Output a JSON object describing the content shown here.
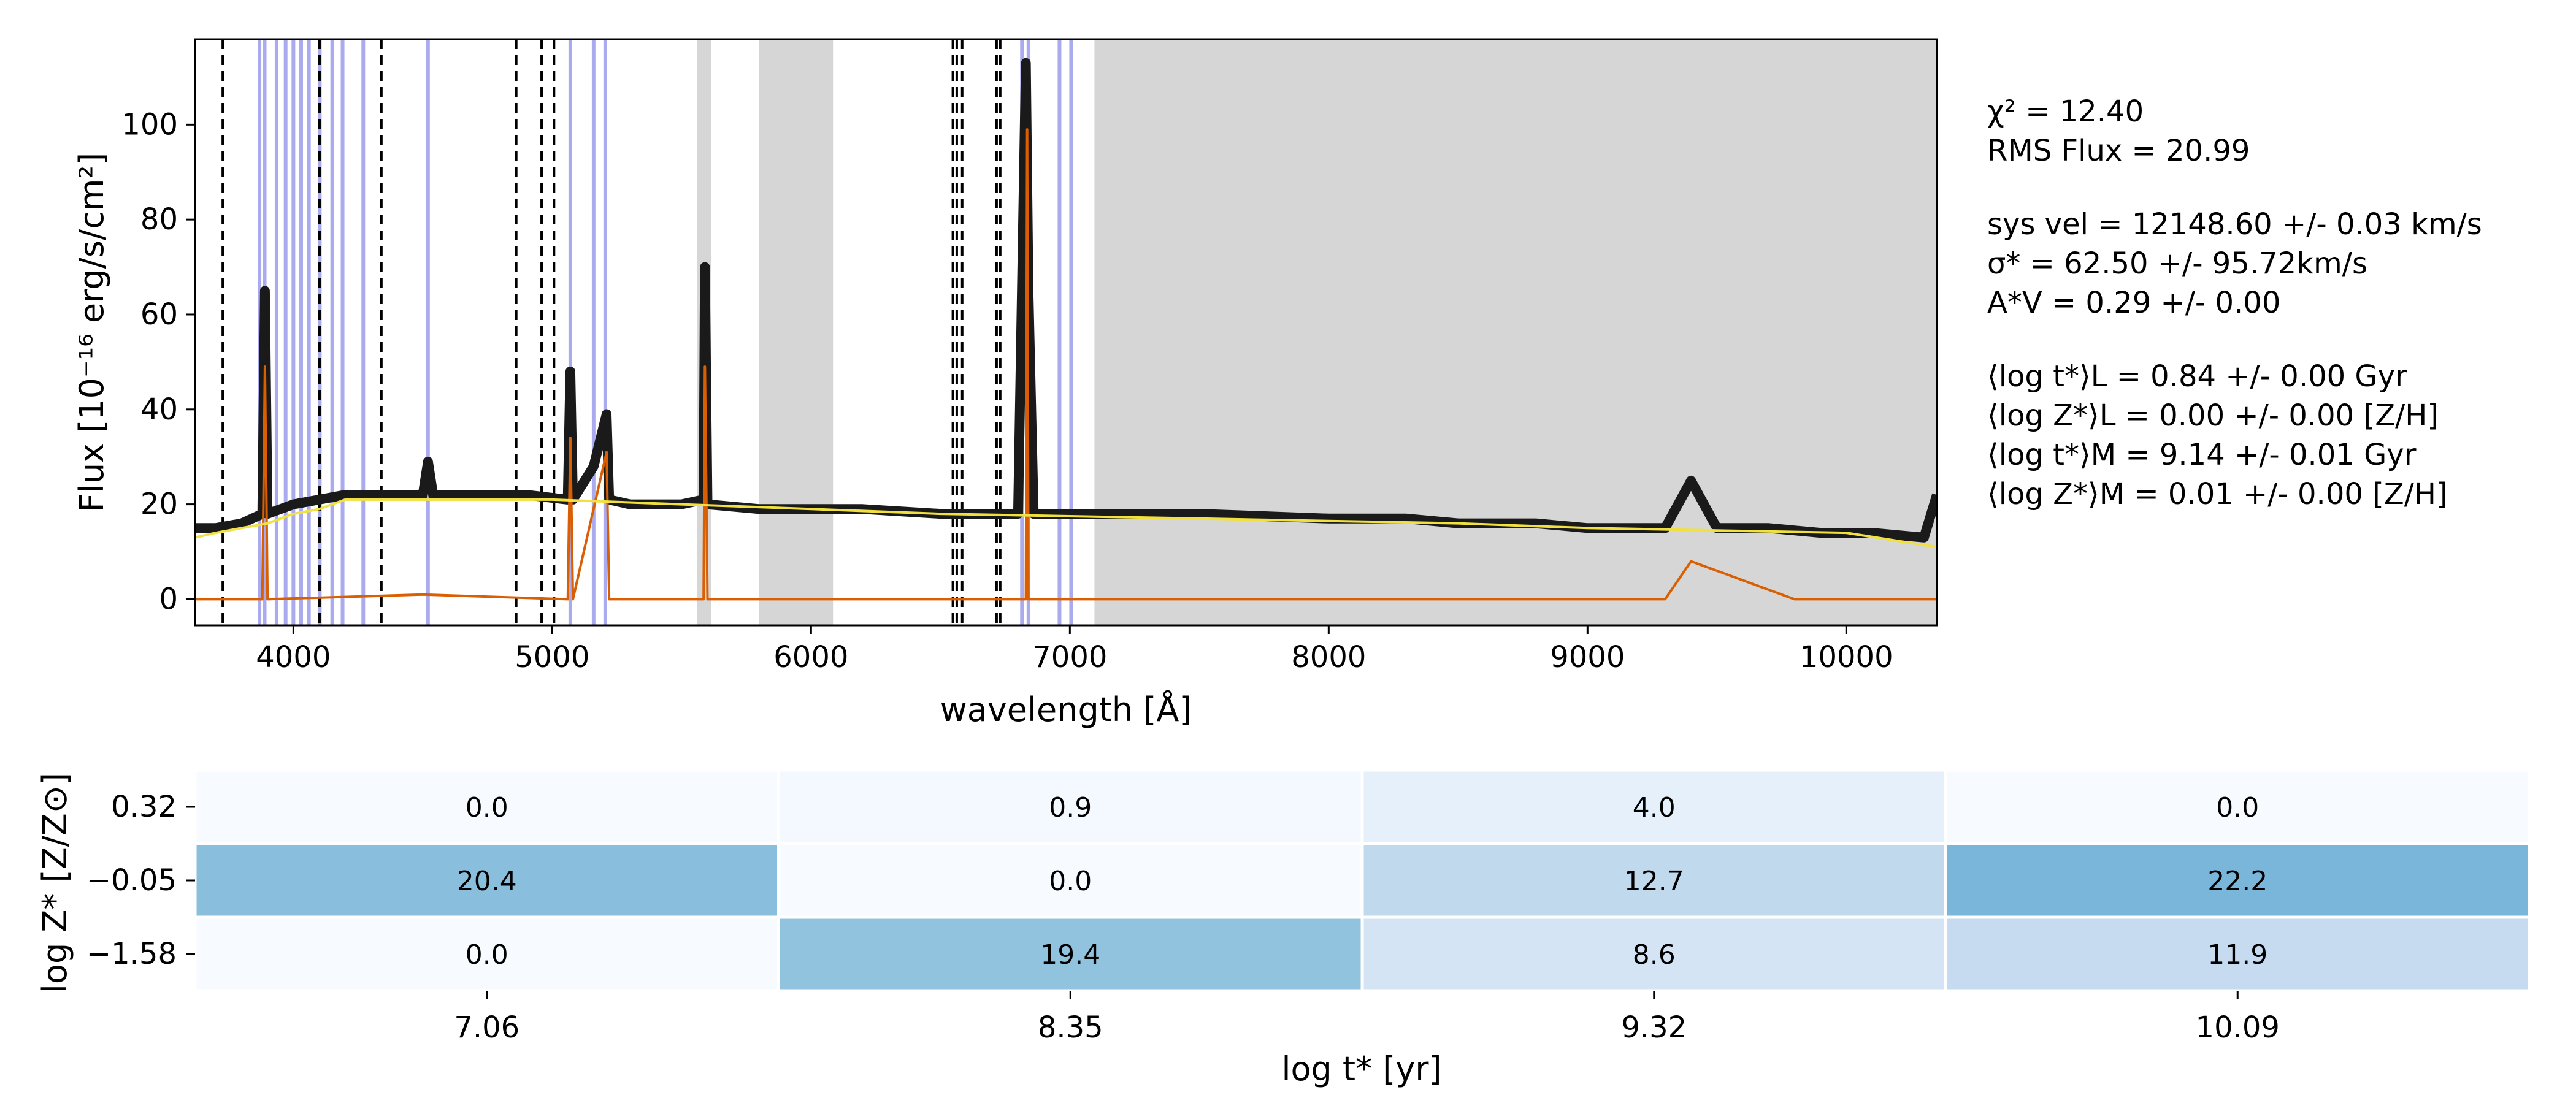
{
  "chart_data": [
    {
      "type": "line",
      "xlabel": "wavelength [Å]",
      "ylabel": "Flux [10⁻¹⁶ erg/s/cm²]",
      "xlim": [
        3620,
        10350
      ],
      "ylim": [
        -5.5,
        118
      ],
      "xticks": [
        4000,
        5000,
        6000,
        7000,
        8000,
        9000,
        10000
      ],
      "yticks": [
        0,
        20,
        40,
        60,
        80,
        100
      ],
      "grid": false,
      "legend": "none",
      "colors": {
        "observed": "#1a1a1a",
        "model": "#f0e040",
        "residual": "#d95f02",
        "masked": "#d6d6d6",
        "emission_lines": "#aaaaee",
        "dashed_lines": "#000000"
      },
      "masked_regions": [
        [
          5560,
          5615
        ],
        [
          5800,
          6085
        ],
        [
          7095,
          10350
        ]
      ],
      "emission_lines_blue": [
        3869,
        3889,
        3935,
        3970,
        4000,
        4030,
        4060,
        4102,
        4150,
        4190,
        4270,
        4520,
        5070,
        5160,
        5205,
        6815,
        6840,
        6960,
        7005
      ],
      "absorption_lines_dashed": [
        3727,
        4101,
        4340,
        4861,
        4959,
        5007,
        6548,
        6563,
        6584,
        6717,
        6731
      ],
      "series": [
        {
          "name": "observed",
          "x": [
            3620,
            3700,
            3800,
            3880,
            3890,
            3900,
            4000,
            4100,
            4200,
            4300,
            4400,
            4500,
            4520,
            4540,
            4700,
            4900,
            5060,
            5070,
            5080,
            5160,
            5210,
            5220,
            5300,
            5500,
            5585,
            5590,
            5600,
            5800,
            6000,
            6200,
            6500,
            6800,
            6830,
            6840,
            6860,
            7000,
            7500,
            8000,
            8300,
            8500,
            8800,
            9000,
            9300,
            9400,
            9500,
            9700,
            9900,
            10100,
            10300,
            10350
          ],
          "y": [
            15,
            15,
            16,
            18,
            65,
            18,
            20,
            21,
            22,
            22,
            22,
            22,
            29,
            22,
            22,
            22,
            21,
            48,
            21,
            28,
            39,
            21,
            20,
            20,
            21,
            70,
            20,
            19,
            19,
            19,
            18,
            18,
            113,
            65,
            18,
            18,
            18,
            17,
            17,
            16,
            16,
            15,
            15,
            25,
            15,
            15,
            14,
            14,
            13,
            22
          ]
        },
        {
          "name": "model",
          "x": [
            3620,
            3700,
            3800,
            3900,
            4000,
            4100,
            4200,
            4300,
            4500,
            4800,
            5000,
            5500,
            6000,
            6500,
            7000,
            7500,
            8000,
            8500,
            9000,
            9500,
            10000,
            10350
          ],
          "y": [
            13,
            14,
            15,
            16,
            18,
            19,
            21,
            21,
            21,
            21,
            21,
            20,
            19,
            18,
            17.5,
            17,
            16.5,
            16,
            15,
            14.5,
            14,
            11
          ]
        },
        {
          "name": "residual",
          "x": [
            3620,
            3880,
            3890,
            3900,
            4500,
            5060,
            5070,
            5080,
            5210,
            5220,
            5585,
            5590,
            5600,
            6830,
            6835,
            6840,
            7000,
            8300,
            8800,
            9300,
            9400,
            9800,
            10000,
            10350
          ],
          "y": [
            0,
            0,
            49,
            0,
            1,
            0,
            34,
            0,
            31,
            0,
            0,
            49,
            0,
            0,
            99,
            0,
            0,
            0,
            0,
            0,
            8,
            0,
            0,
            0
          ]
        }
      ]
    },
    {
      "type": "heatmap",
      "xlabel": "log t* [yr]",
      "ylabel": "log Z* [Z/Z⊙]",
      "x": [
        "7.06",
        "8.35",
        "9.32",
        "10.09"
      ],
      "y": [
        "0.32",
        "−0.05",
        "−1.58"
      ],
      "values": [
        [
          0.0,
          0.9,
          4.0,
          0.0
        ],
        [
          20.4,
          0.0,
          12.7,
          22.2
        ],
        [
          0.0,
          19.4,
          8.6,
          11.9
        ]
      ],
      "value_labels": [
        [
          "0.0",
          "0.9",
          "4.0",
          "0.0"
        ],
        [
          "20.4",
          "0.0",
          "12.7",
          "22.2"
        ],
        [
          "0.0",
          "19.4",
          "8.6",
          "11.9"
        ]
      ],
      "colormap": "Blues"
    }
  ],
  "stats": {
    "chi2": "χ² = 12.40",
    "rms_flux": "RMS Flux = 20.99",
    "sys_vel": "sys vel = 12148.60 +/- 0.03 km/s",
    "sigma": "σ* = 62.50 +/- 95.72km/s",
    "av": "A*V = 0.29 +/- 0.00",
    "logt_l": "⟨log t*⟩L = 0.84 +/- 0.00 Gyr",
    "logz_l": "⟨log Z*⟩L = 0.00 +/- 0.00 [Z/H]",
    "logt_m": "⟨log t*⟩M = 9.14 +/- 0.01 Gyr",
    "logz_m": "⟨log Z*⟩M = 0.01 +/- 0.00 [Z/H]"
  }
}
